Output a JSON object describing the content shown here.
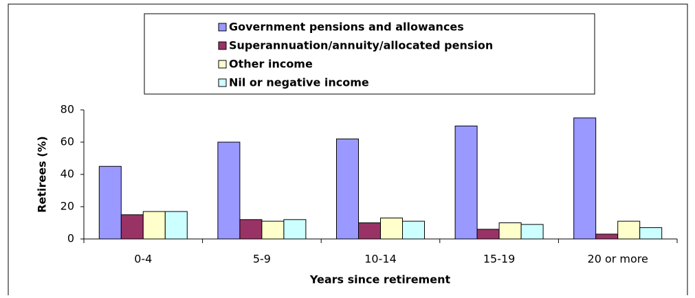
{
  "chart_data": {
    "type": "bar",
    "x_label": "Years since retirement",
    "y_label": "Retirees (%)",
    "categories": [
      "0-4",
      "5-9",
      "10-14",
      "15-19",
      "20 or more"
    ],
    "series": [
      {
        "name": "Government pensions and allowances",
        "color": "#9999ff",
        "values": [
          45,
          60,
          62,
          70,
          75
        ]
      },
      {
        "name": "Superannuation/annuity/allocated pension",
        "color": "#993366",
        "values": [
          15,
          12,
          10,
          6,
          3
        ]
      },
      {
        "name": "Other income",
        "color": "#ffffcc",
        "values": [
          17,
          11,
          13,
          10,
          11
        ]
      },
      {
        "name": "Nil or negative income",
        "color": "#ccffff",
        "values": [
          17,
          12,
          11,
          9,
          7
        ]
      }
    ],
    "ylim": [
      0,
      80
    ],
    "yticks": [
      0,
      20,
      40,
      60,
      80
    ],
    "legend": "top"
  }
}
